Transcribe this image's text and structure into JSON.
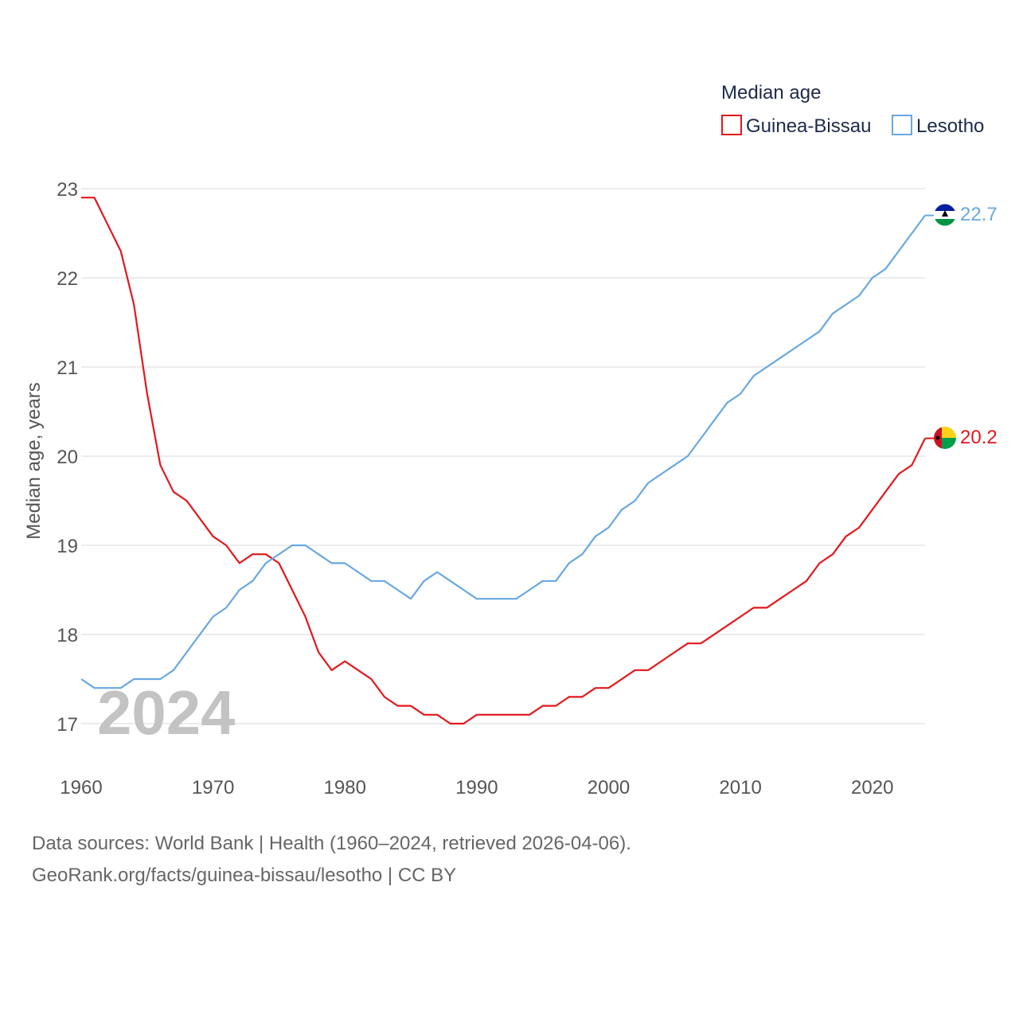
{
  "chart_data": {
    "type": "line",
    "ylabel": "Median age, years",
    "xlabel": "",
    "legend_title": "Median age",
    "legend_position": "top-right",
    "year_overlay": "2024",
    "xlim": [
      1960,
      2024
    ],
    "ylim": [
      16.5,
      23.1
    ],
    "x_ticks": [
      1960,
      1970,
      1980,
      1990,
      2000,
      2010,
      2020
    ],
    "y_ticks": [
      17,
      18,
      19,
      20,
      21,
      22,
      23
    ],
    "grid": true,
    "x": [
      1960,
      1961,
      1962,
      1963,
      1964,
      1965,
      1966,
      1967,
      1968,
      1969,
      1970,
      1971,
      1972,
      1973,
      1974,
      1975,
      1976,
      1977,
      1978,
      1979,
      1980,
      1981,
      1982,
      1983,
      1984,
      1985,
      1986,
      1987,
      1988,
      1989,
      1990,
      1991,
      1992,
      1993,
      1994,
      1995,
      1996,
      1997,
      1998,
      1999,
      2000,
      2001,
      2002,
      2003,
      2004,
      2005,
      2006,
      2007,
      2008,
      2009,
      2010,
      2011,
      2012,
      2013,
      2014,
      2015,
      2016,
      2017,
      2018,
      2019,
      2020,
      2021,
      2022,
      2023,
      2024
    ],
    "series": [
      {
        "name": "Guinea-Bissau",
        "color": "#e3171c",
        "end_label": "20.2",
        "flag": "guinea-bissau-flag",
        "values": [
          22.9,
          22.9,
          22.6,
          22.3,
          21.7,
          20.7,
          19.9,
          19.6,
          19.5,
          19.3,
          19.1,
          19.0,
          18.8,
          18.9,
          18.9,
          18.8,
          18.5,
          18.2,
          17.8,
          17.6,
          17.7,
          17.6,
          17.5,
          17.3,
          17.2,
          17.2,
          17.1,
          17.1,
          17.0,
          17.0,
          17.1,
          17.1,
          17.1,
          17.1,
          17.1,
          17.2,
          17.2,
          17.3,
          17.3,
          17.4,
          17.4,
          17.5,
          17.6,
          17.6,
          17.7,
          17.8,
          17.9,
          17.9,
          18.0,
          18.1,
          18.2,
          18.3,
          18.3,
          18.4,
          18.5,
          18.6,
          18.8,
          18.9,
          19.1,
          19.2,
          19.4,
          19.6,
          19.8,
          19.9,
          20.2
        ]
      },
      {
        "name": "Lesotho",
        "color": "#68a8e0",
        "end_label": "22.7",
        "flag": "lesotho-flag",
        "values": [
          17.5,
          17.4,
          17.4,
          17.4,
          17.5,
          17.5,
          17.5,
          17.6,
          17.8,
          18.0,
          18.2,
          18.3,
          18.5,
          18.6,
          18.8,
          18.9,
          19.0,
          19.0,
          18.9,
          18.8,
          18.8,
          18.7,
          18.6,
          18.6,
          18.5,
          18.4,
          18.6,
          18.7,
          18.6,
          18.5,
          18.4,
          18.4,
          18.4,
          18.4,
          18.5,
          18.6,
          18.6,
          18.8,
          18.9,
          19.1,
          19.2,
          19.4,
          19.5,
          19.7,
          19.8,
          19.9,
          20.0,
          20.2,
          20.4,
          20.6,
          20.7,
          20.9,
          21.0,
          21.1,
          21.2,
          21.3,
          21.4,
          21.6,
          21.7,
          21.8,
          22.0,
          22.1,
          22.3,
          22.5,
          22.7
        ]
      }
    ]
  },
  "footer": {
    "line1": "Data sources: World Bank | Health (1960–2024, retrieved 2026-04-06).",
    "line2": "GeoRank.org/facts/guinea-bissau/lesotho | CC BY"
  }
}
